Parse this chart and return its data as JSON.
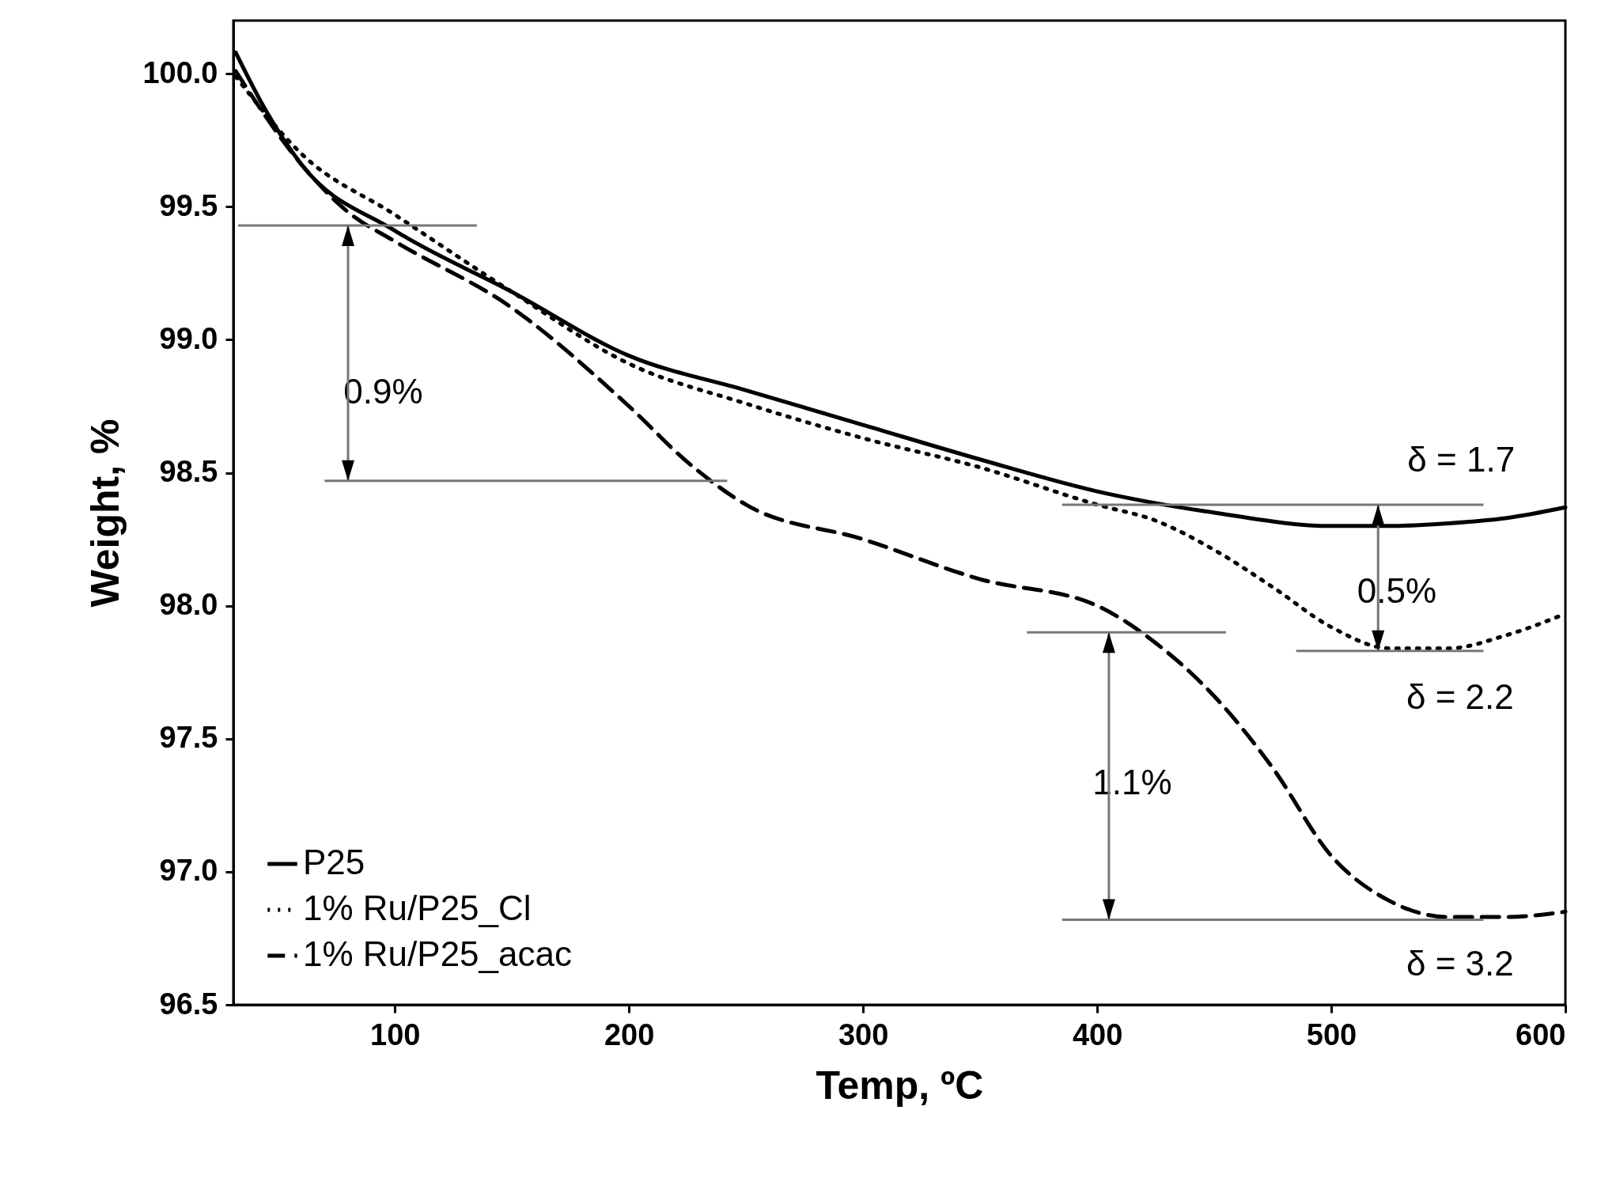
{
  "chart_data": {
    "type": "line",
    "xlabel": "Temp, ºC",
    "ylabel": "Weight, %",
    "xlim": [
      31,
      600
    ],
    "ylim": [
      96.5,
      100.2
    ],
    "xticks": [
      100,
      200,
      300,
      400,
      500,
      600
    ],
    "yticks": [
      {
        "value": 96.5,
        "label": "96.5"
      },
      {
        "value": 97,
        "label": "97.0"
      },
      {
        "value": 97.5,
        "label": "97.5"
      },
      {
        "value": 98,
        "label": "98.0"
      },
      {
        "value": 98.5,
        "label": "98.5"
      },
      {
        "value": 99,
        "label": "99.0"
      },
      {
        "value": 99.5,
        "label": "99.5"
      },
      {
        "value": 100,
        "label": "100.0"
      }
    ],
    "grid": false,
    "legend": "bottom left",
    "marker": "none",
    "series": [
      {
        "name": "P25",
        "color": "#000000",
        "line_style": "solid",
        "x": [
          32,
          45,
          60,
          100,
          150,
          200,
          250,
          300,
          350,
          400,
          450,
          500,
          525,
          550,
          575,
          600
        ],
        "values": [
          100.08,
          99.86,
          99.66,
          99.41,
          99.18,
          98.94,
          98.81,
          98.68,
          98.55,
          98.43,
          98.35,
          98.3,
          98.3,
          98.31,
          98.33,
          98.37
        ]
      },
      {
        "name": "1% Ru/P25_Cl",
        "color": "#000000",
        "line_style": "dotted",
        "x": [
          32,
          60,
          100,
          150,
          200,
          250,
          300,
          350,
          400,
          425,
          450,
          475,
          500,
          525,
          550,
          575,
          600
        ],
        "values": [
          99.99,
          99.7,
          99.47,
          99.18,
          98.91,
          98.76,
          98.63,
          98.52,
          98.38,
          98.32,
          98.21,
          98.07,
          97.92,
          97.84,
          97.84,
          97.89,
          97.97
        ]
      },
      {
        "name": "1% Ru/P25_acac",
        "color": "#000000",
        "line_style": "dashed",
        "x": [
          32,
          60,
          80,
          100,
          150,
          200,
          225,
          250,
          300,
          350,
          400,
          425,
          450,
          475,
          500,
          525,
          550,
          575,
          600
        ],
        "values": [
          100.01,
          99.66,
          99.48,
          99.37,
          99.12,
          98.75,
          98.54,
          98.38,
          98.25,
          98.1,
          98.0,
          97.86,
          97.66,
          97.39,
          97.06,
          96.89,
          96.83,
          96.83,
          96.85
        ]
      }
    ],
    "annotations": [
      "0.9%",
      {
        "text": "δ = 1.7",
        "x": 520,
        "y": 98.3
      },
      "0.5%",
      "δ = 2.2",
      "1.1%",
      "δ = 3.2"
    ]
  }
}
